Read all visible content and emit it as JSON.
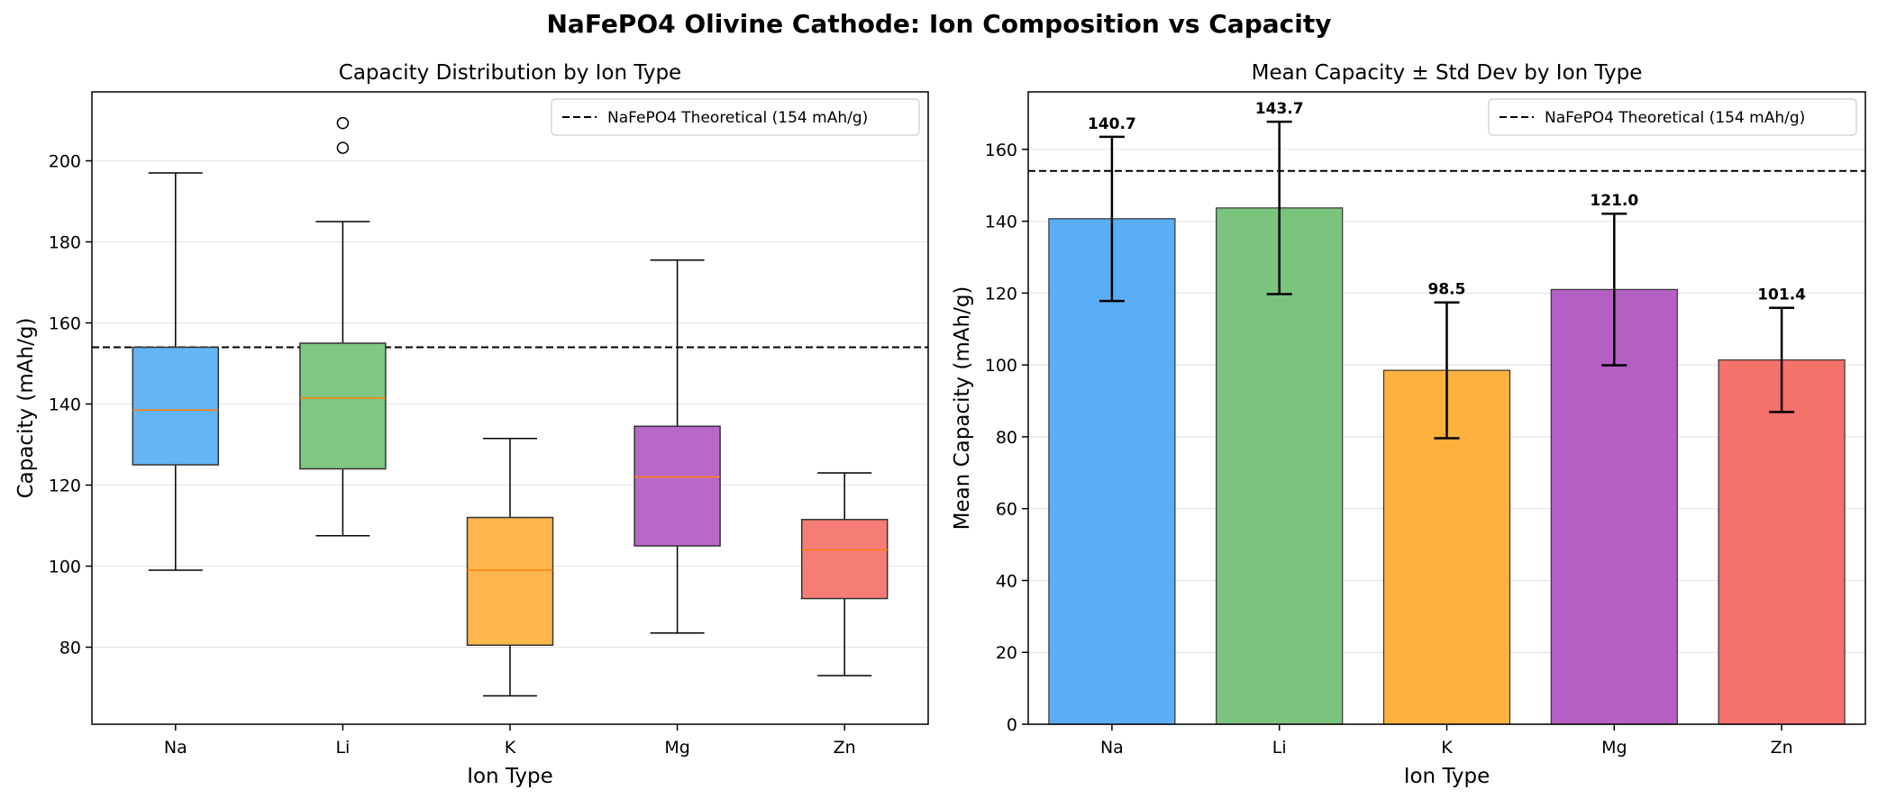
{
  "figure": {
    "title": "NaFePO4 Olivine Cathode: Ion Composition vs Capacity"
  },
  "chart_data": [
    {
      "type": "box",
      "title": "Capacity Distribution by Ion Type",
      "xlabel": "Ion Type",
      "ylabel": "Capacity (mAh/g)",
      "ylim": [
        61,
        217
      ],
      "yticks": [
        80,
        100,
        120,
        140,
        160,
        180,
        200
      ],
      "grid": "y",
      "legend": {
        "position": "top-right",
        "entries": [
          "NaFePO4 Theoretical (154 mAh/g)"
        ]
      },
      "reference_line": {
        "value": 154,
        "label": "NaFePO4 Theoretical (154 mAh/g)",
        "style": "dashed",
        "color": "#000000"
      },
      "categories": [
        "Na",
        "Li",
        "K",
        "Mg",
        "Zn"
      ],
      "colors": [
        "#64b5f6",
        "#81c784",
        "#ffb74d",
        "#ba68c8",
        "#f67d75"
      ],
      "median_color": "#ff7f0e",
      "boxes": [
        {
          "category": "Na",
          "whisker_low": 99,
          "q1": 125,
          "median": 138.5,
          "q3": 154,
          "whisker_high": 197,
          "outliers": []
        },
        {
          "category": "Li",
          "whisker_low": 107.5,
          "q1": 124,
          "median": 141.5,
          "q3": 155,
          "whisker_high": 185,
          "outliers": [
            203.2,
            209.3
          ]
        },
        {
          "category": "K",
          "whisker_low": 68,
          "q1": 80.5,
          "median": 99,
          "q3": 112,
          "whisker_high": 131.5,
          "outliers": []
        },
        {
          "category": "Mg",
          "whisker_low": 83.5,
          "q1": 105,
          "median": 122,
          "q3": 134.5,
          "whisker_high": 175.5,
          "outliers": []
        },
        {
          "category": "Zn",
          "whisker_low": 73,
          "q1": 92,
          "median": 104,
          "q3": 111.5,
          "whisker_high": 123,
          "outliers": []
        }
      ]
    },
    {
      "type": "bar",
      "title": "Mean Capacity ± Std Dev by Ion Type",
      "xlabel": "Ion Type",
      "ylabel": "Mean Capacity (mAh/g)",
      "ylim": [
        0,
        176
      ],
      "yticks": [
        0,
        20,
        40,
        60,
        80,
        100,
        120,
        140,
        160
      ],
      "grid": "y",
      "legend": {
        "position": "top-right",
        "entries": [
          "NaFePO4 Theoretical (154 mAh/g)"
        ]
      },
      "reference_line": {
        "value": 154,
        "label": "NaFePO4 Theoretical (154 mAh/g)",
        "style": "dashed",
        "color": "#000000"
      },
      "categories": [
        "Na",
        "Li",
        "K",
        "Mg",
        "Zn"
      ],
      "colors": [
        "#5aaef5",
        "#7bc47e",
        "#ffb13d",
        "#b55fc4",
        "#f5716b"
      ],
      "values": [
        140.7,
        143.7,
        98.5,
        121.0,
        101.4
      ],
      "value_labels": [
        "140.7",
        "143.7",
        "98.5",
        "121.0",
        "101.4"
      ],
      "error_low": [
        117.8,
        119.7,
        79.6,
        99.9,
        86.9
      ],
      "error_high": [
        163.5,
        167.7,
        117.4,
        142.1,
        115.9
      ]
    }
  ]
}
